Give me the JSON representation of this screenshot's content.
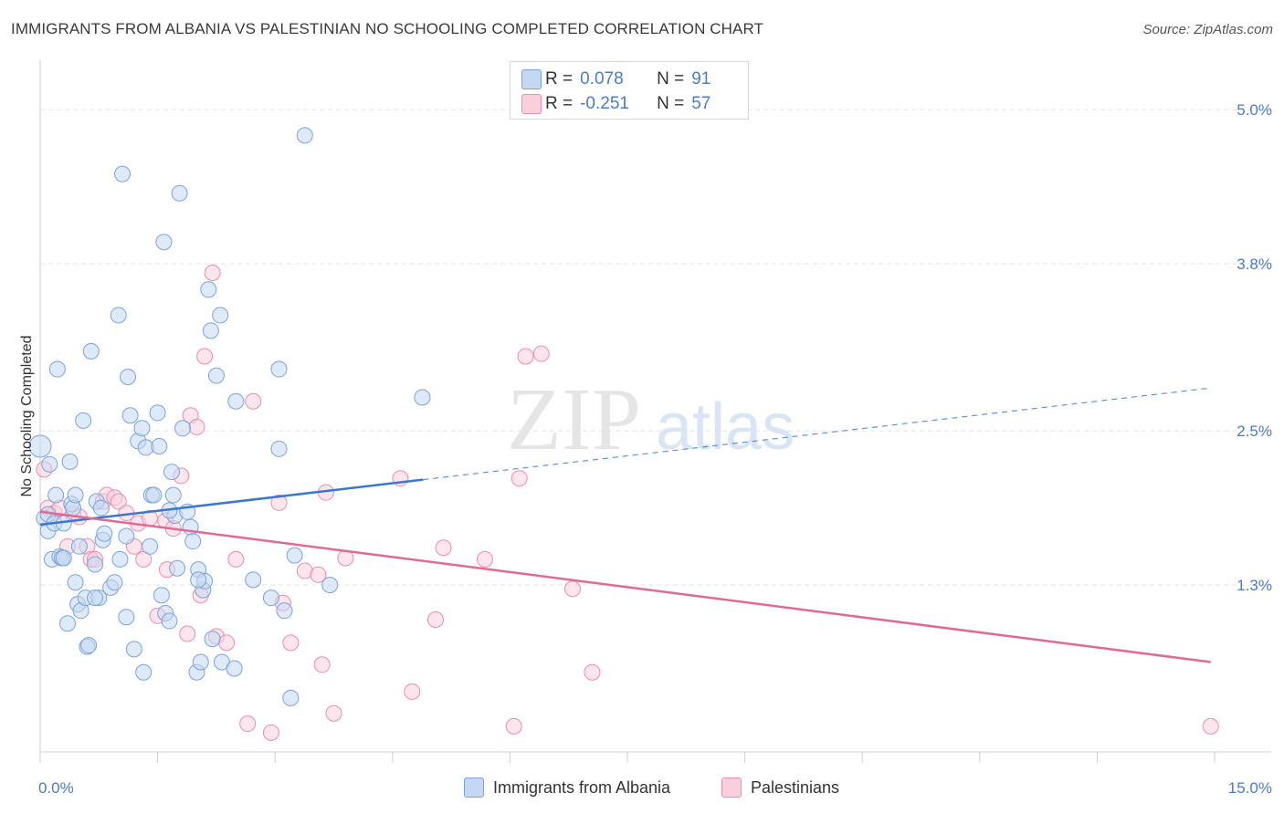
{
  "header": {
    "title": "IMMIGRANTS FROM ALBANIA VS PALESTINIAN NO SCHOOLING COMPLETED CORRELATION CHART",
    "source": "Source: ZipAtlas.com"
  },
  "watermark": {
    "zip": "ZIP",
    "atlas": "atlas"
  },
  "legend": {
    "rows": [
      {
        "r_label": "R =",
        "r_value": "0.078",
        "n_label": "N =",
        "n_value": "91"
      },
      {
        "r_label": "R =",
        "r_value": "-0.251",
        "n_label": "N =",
        "n_value": "57"
      }
    ]
  },
  "bottom_legend": [
    "Immigrants from Albania",
    "Palestinians"
  ],
  "colors": {
    "albania_fill": "#c5d8f3",
    "albania_stroke": "#7aa3d9",
    "albania_line": "#3a78d0",
    "pal_fill": "#f9cfdc",
    "pal_stroke": "#e88fae",
    "pal_line": "#e06a96",
    "tick_text": "#4a7cc7",
    "grid": "#e3e3e3"
  },
  "chart_data": {
    "type": "scatter",
    "title": "IMMIGRANTS FROM ALBANIA VS PALESTINIAN NO SCHOOLING COMPLETED CORRELATION CHART",
    "xlabel": "",
    "ylabel": "No Schooling Completed",
    "xlim": [
      0,
      15
    ],
    "ylim": [
      0,
      5.3
    ],
    "x_tick_labels": [
      "0.0%",
      "15.0%"
    ],
    "y_ticks": [
      1.3,
      2.5,
      3.8,
      5.0
    ],
    "y_tick_labels": [
      "1.3%",
      "2.5%",
      "3.8%",
      "5.0%"
    ],
    "grid": true,
    "legend_position": "top-center",
    "series": [
      {
        "name": "Immigrants from Albania",
        "R": 0.078,
        "N": 91,
        "trend": {
          "x0": 0,
          "y0": 1.77,
          "x1_solid": 4.89,
          "y1_solid": 2.12,
          "x1_dashed": 14.9,
          "y1_dashed": 2.83
        },
        "points": [
          [
            0.0,
            2.38
          ],
          [
            0.05,
            1.82
          ],
          [
            0.1,
            1.72
          ],
          [
            0.1,
            1.85
          ],
          [
            0.12,
            2.24
          ],
          [
            0.15,
            1.5
          ],
          [
            0.18,
            1.78
          ],
          [
            0.2,
            2.0
          ],
          [
            0.22,
            2.98
          ],
          [
            0.25,
            1.52
          ],
          [
            0.28,
            1.51
          ],
          [
            0.3,
            1.78
          ],
          [
            0.35,
            1.0
          ],
          [
            0.38,
            2.26
          ],
          [
            0.4,
            1.93
          ],
          [
            0.42,
            1.9
          ],
          [
            0.45,
            1.32
          ],
          [
            0.48,
            1.15
          ],
          [
            0.5,
            1.6
          ],
          [
            0.52,
            1.1
          ],
          [
            0.55,
            2.58
          ],
          [
            0.58,
            1.2
          ],
          [
            0.6,
            0.82
          ],
          [
            0.62,
            0.83
          ],
          [
            0.65,
            3.12
          ],
          [
            0.7,
            1.46
          ],
          [
            0.72,
            1.95
          ],
          [
            0.75,
            1.2
          ],
          [
            0.78,
            1.9
          ],
          [
            0.8,
            1.65
          ],
          [
            0.82,
            1.7
          ],
          [
            0.9,
            1.28
          ],
          [
            0.95,
            1.32
          ],
          [
            1.0,
            3.4
          ],
          [
            1.02,
            1.5
          ],
          [
            1.05,
            4.5
          ],
          [
            1.1,
            1.05
          ],
          [
            1.12,
            2.92
          ],
          [
            1.15,
            2.62
          ],
          [
            1.2,
            0.8
          ],
          [
            1.25,
            2.42
          ],
          [
            1.3,
            2.52
          ],
          [
            1.32,
            0.62
          ],
          [
            1.35,
            2.37
          ],
          [
            1.4,
            1.6
          ],
          [
            1.42,
            2.0
          ],
          [
            1.45,
            2.0
          ],
          [
            1.5,
            2.64
          ],
          [
            1.52,
            2.38
          ],
          [
            1.55,
            1.22
          ],
          [
            1.58,
            3.97
          ],
          [
            1.6,
            1.08
          ],
          [
            1.65,
            1.02
          ],
          [
            1.68,
            2.18
          ],
          [
            1.7,
            2.0
          ],
          [
            1.72,
            1.84
          ],
          [
            1.75,
            1.43
          ],
          [
            1.78,
            4.35
          ],
          [
            1.82,
            2.52
          ],
          [
            1.88,
            1.87
          ],
          [
            1.92,
            1.75
          ],
          [
            1.95,
            1.64
          ],
          [
            2.0,
            0.62
          ],
          [
            2.02,
            1.42
          ],
          [
            2.05,
            0.7
          ],
          [
            2.08,
            1.26
          ],
          [
            2.1,
            1.33
          ],
          [
            2.15,
            3.6
          ],
          [
            2.18,
            3.28
          ],
          [
            2.2,
            0.88
          ],
          [
            2.25,
            2.93
          ],
          [
            2.3,
            3.4
          ],
          [
            2.32,
            0.7
          ],
          [
            2.48,
            0.65
          ],
          [
            2.5,
            2.73
          ],
          [
            2.72,
            1.34
          ],
          [
            2.95,
            1.2
          ],
          [
            3.05,
            2.36
          ],
          [
            3.12,
            1.1
          ],
          [
            3.2,
            0.42
          ],
          [
            3.25,
            1.53
          ],
          [
            3.38,
            4.8
          ],
          [
            4.88,
            2.76
          ],
          [
            3.05,
            2.98
          ],
          [
            1.65,
            1.88
          ],
          [
            0.3,
            1.51
          ],
          [
            0.7,
            1.2
          ],
          [
            1.1,
            1.68
          ],
          [
            2.02,
            1.34
          ],
          [
            0.45,
            2.0
          ],
          [
            3.7,
            1.3
          ]
        ]
      },
      {
        "name": "Palestinians",
        "R": -0.251,
        "N": 57,
        "trend": {
          "x0": 0,
          "y0": 1.87,
          "x1": 14.95,
          "y1": 0.7
        },
        "points": [
          [
            0.05,
            2.2
          ],
          [
            0.1,
            1.9
          ],
          [
            0.18,
            1.86
          ],
          [
            0.25,
            1.9
          ],
          [
            0.35,
            1.6
          ],
          [
            0.42,
            1.85
          ],
          [
            0.5,
            1.83
          ],
          [
            0.6,
            1.6
          ],
          [
            0.65,
            1.5
          ],
          [
            0.7,
            1.5
          ],
          [
            0.8,
            1.95
          ],
          [
            0.85,
            2.0
          ],
          [
            0.95,
            1.98
          ],
          [
            1.0,
            1.95
          ],
          [
            1.1,
            1.86
          ],
          [
            1.2,
            1.6
          ],
          [
            1.25,
            1.78
          ],
          [
            1.32,
            1.5
          ],
          [
            1.4,
            1.82
          ],
          [
            1.5,
            1.06
          ],
          [
            1.6,
            1.8
          ],
          [
            1.62,
            1.42
          ],
          [
            1.7,
            1.74
          ],
          [
            1.8,
            2.15
          ],
          [
            1.88,
            0.92
          ],
          [
            1.92,
            2.62
          ],
          [
            2.0,
            2.53
          ],
          [
            2.05,
            1.22
          ],
          [
            2.1,
            3.08
          ],
          [
            2.2,
            3.73
          ],
          [
            2.25,
            0.9
          ],
          [
            2.38,
            0.85
          ],
          [
            2.5,
            1.5
          ],
          [
            2.65,
            0.22
          ],
          [
            2.72,
            2.73
          ],
          [
            2.95,
            0.15
          ],
          [
            3.05,
            1.94
          ],
          [
            3.1,
            1.16
          ],
          [
            3.2,
            0.85
          ],
          [
            3.38,
            1.41
          ],
          [
            3.55,
            1.38
          ],
          [
            3.6,
            0.68
          ],
          [
            3.65,
            2.02
          ],
          [
            3.75,
            0.3
          ],
          [
            3.9,
            1.51
          ],
          [
            4.6,
            2.13
          ],
          [
            4.75,
            0.47
          ],
          [
            5.05,
            1.03
          ],
          [
            5.15,
            1.59
          ],
          [
            5.68,
            1.5
          ],
          [
            6.05,
            0.2
          ],
          [
            6.12,
            2.13
          ],
          [
            6.2,
            3.08
          ],
          [
            6.4,
            3.1
          ],
          [
            6.8,
            1.27
          ],
          [
            7.05,
            0.62
          ],
          [
            14.95,
            0.2
          ]
        ]
      }
    ]
  }
}
